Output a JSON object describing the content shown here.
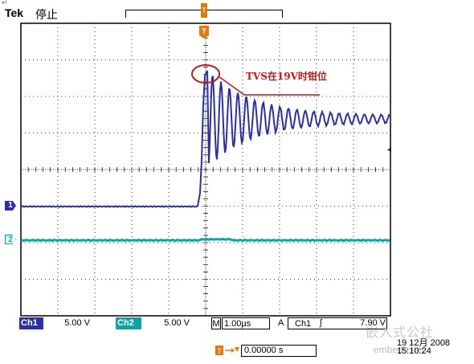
{
  "header": {
    "brand": "Tek",
    "status": "停止",
    "return_mark": "↵"
  },
  "annotation": {
    "text": "TVS在19V时钳位",
    "color": "#c21818"
  },
  "markers": {
    "ch1": "1",
    "ch2": "2",
    "trigger": "T",
    "level": "◂"
  },
  "status_bar": {
    "ch1_label": "Ch1",
    "ch1_scale": "5.00 V",
    "ch2_label": "Ch2",
    "ch2_scale": "5.00 V",
    "m_label": "M",
    "m_value": "1.00µs",
    "a_label": "A",
    "trigger_source": "Ch1",
    "trigger_slope": "ʃ",
    "trigger_level": "7.90 V"
  },
  "horizontal_position": "0.00000 s",
  "datetime": {
    "date": "19 12月 2008",
    "time": "15:10:24"
  },
  "watermark": {
    "text": "嵌入式公社",
    "url": "embedu.net"
  },
  "colors": {
    "ch1": "#2b2fa8",
    "ch2": "#0aa5a5",
    "trigger": "#e07a10",
    "grid": "#000000",
    "annotation": "#c21818"
  }
}
